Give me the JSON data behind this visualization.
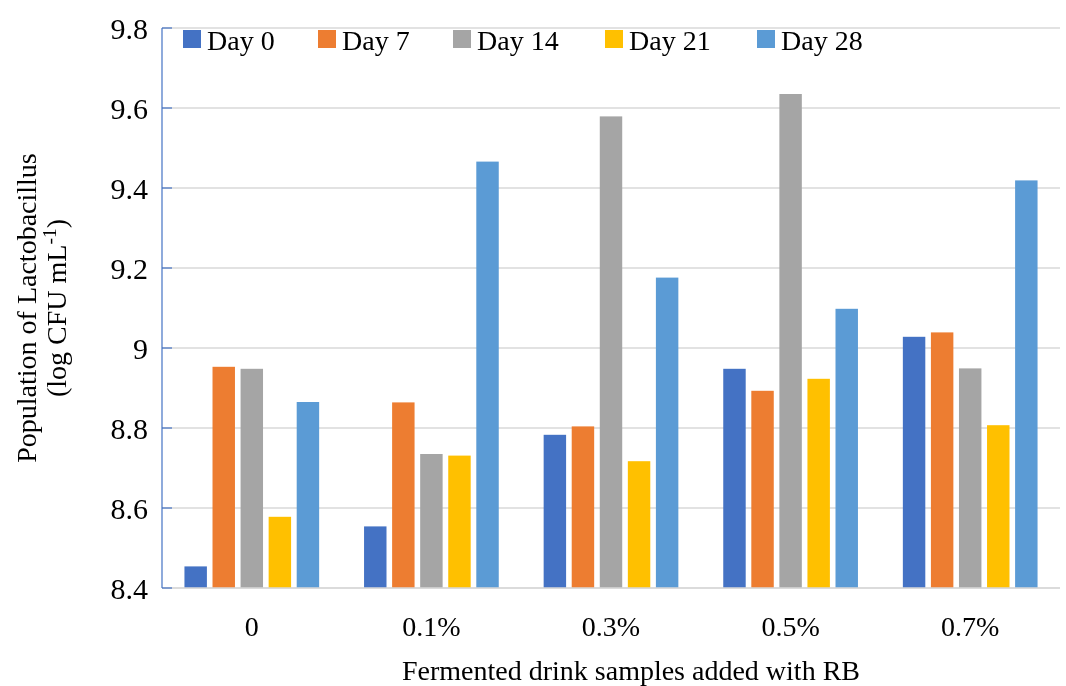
{
  "chart_data": {
    "type": "bar",
    "xlabel": "Fermented drink samples added with RB",
    "ylabel": "Population of Lactobacillus\n(log CFU mL$^{-1}$)",
    "categories": [
      "0",
      "0.1%",
      "0.3%",
      "0.5%",
      "0.7%"
    ],
    "series": [
      {
        "name": "Day 0",
        "color": "#4472c4",
        "values": [
          8.454,
          8.554,
          8.783,
          8.948,
          9.028
        ]
      },
      {
        "name": "Day 7",
        "color": "#ed7d31",
        "values": [
          8.953,
          8.864,
          8.804,
          8.893,
          9.039
        ]
      },
      {
        "name": "Day 14",
        "color": "#a5a5a5",
        "values": [
          8.948,
          8.735,
          9.579,
          9.635,
          8.949
        ]
      },
      {
        "name": "Day 21",
        "color": "#ffc000",
        "values": [
          8.578,
          8.731,
          8.717,
          8.923,
          8.807
        ]
      },
      {
        "name": "Day 28",
        "color": "#5b9bd5",
        "values": [
          8.865,
          9.466,
          9.176,
          9.098,
          9.419
        ]
      }
    ],
    "ylim": [
      8.4,
      9.8
    ],
    "yticks": [
      8.4,
      8.6,
      8.8,
      {
        "value": 9,
        "label": "9"
      },
      9.2,
      9.4,
      9.6,
      9.8
    ],
    "grid": "y",
    "legend": "top"
  }
}
